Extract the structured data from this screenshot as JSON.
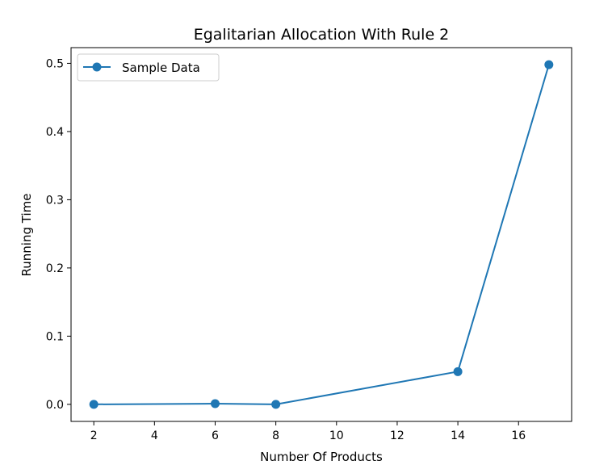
{
  "chart_data": {
    "type": "line",
    "title": "Egalitarian Allocation With Rule 2",
    "xlabel": "Number Of Products",
    "ylabel": "Running Time",
    "xlim": [
      1.25,
      17.75
    ],
    "ylim": [
      -0.025,
      0.523
    ],
    "xticks": [
      2,
      4,
      6,
      8,
      10,
      12,
      14,
      16
    ],
    "yticks": [
      0.0,
      0.1,
      0.2,
      0.3,
      0.4,
      0.5
    ],
    "ytick_labels": [
      "0.0",
      "0.1",
      "0.2",
      "0.3",
      "0.4",
      "0.5"
    ],
    "grid": false,
    "legend_position": "upper-left",
    "series": [
      {
        "name": "Sample Data",
        "color": "#1f77b4",
        "marker": "circle",
        "x": [
          2,
          6,
          8,
          14,
          17
        ],
        "y": [
          0.0,
          0.001,
          0.0,
          0.048,
          0.498
        ]
      }
    ]
  }
}
